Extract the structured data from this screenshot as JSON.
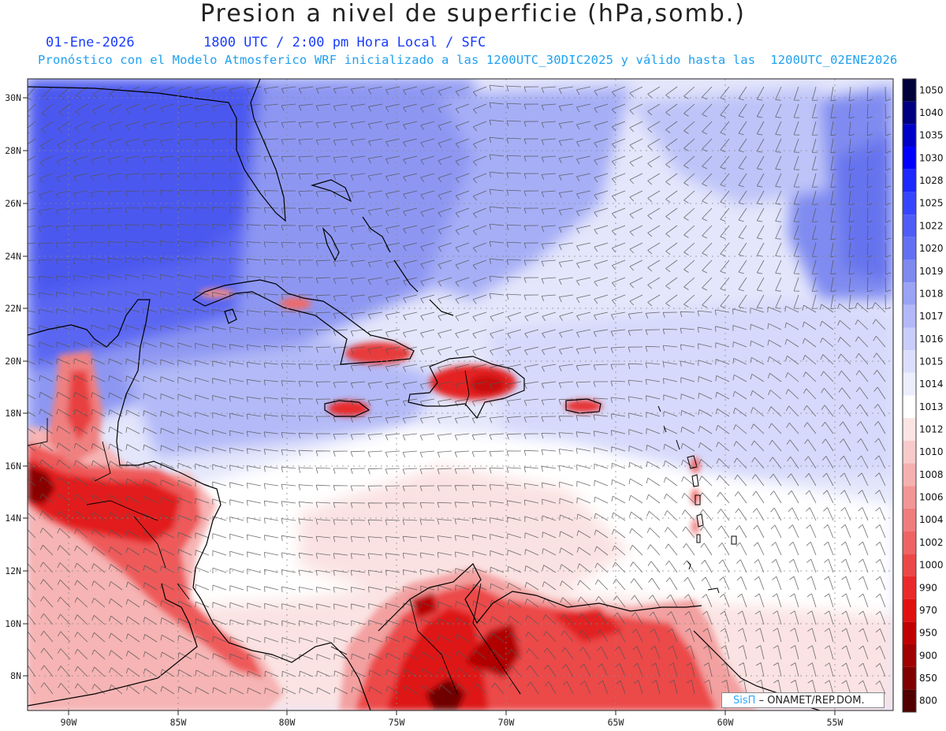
{
  "title": "Presion a nivel de superficie (hPa,somb.)",
  "date_label": "01-Ene-2026",
  "time_label": "1800 UTC / 2:00 pm Hora Local / SFC",
  "forecast_note": "Pronóstico con el Modelo Atmosferico WRF inicializado a las 1200UTC_30DIC2025 y válido hasta las  1200UTC_02ENE2026",
  "credit": {
    "brand": "SisΠ",
    "agency": "– ONAMET/REP.DOM."
  },
  "lat_labels": [
    "30N",
    "28N",
    "26N",
    "24N",
    "22N",
    "20N",
    "18N",
    "16N",
    "14N",
    "12N",
    "10N",
    "8N"
  ],
  "lon_labels": [
    "90W",
    "85W",
    "80W",
    "75W",
    "70W",
    "65W",
    "60W",
    "55W"
  ],
  "legend": {
    "levels": [
      "1050",
      "1040",
      "1035",
      "1030",
      "1028",
      "1025",
      "1022",
      "1020",
      "1019",
      "1018",
      "1017",
      "1016",
      "1015",
      "1014",
      "1013",
      "1012",
      "1010",
      "1008",
      "1006",
      "1004",
      "1002",
      "1000",
      "990",
      "970",
      "950",
      "900",
      "850",
      "800"
    ],
    "colors": [
      "#00003a",
      "#000080",
      "#0000c8",
      "#0000ff",
      "#1c28ff",
      "#3646ff",
      "#4f5cf6",
      "#6370f4",
      "#7e8af0",
      "#9aa3f4",
      "#b2b8f8",
      "#c8cdfa",
      "#dcdffc",
      "#eceefd",
      "#ffffff",
      "#fbe4e4",
      "#f8caca",
      "#f5b0b0",
      "#f29696",
      "#f07d7d",
      "#ee6464",
      "#ec4848",
      "#ea2a2a",
      "#e01010",
      "#c00000",
      "#a00000",
      "#800000",
      "#500000"
    ]
  }
}
